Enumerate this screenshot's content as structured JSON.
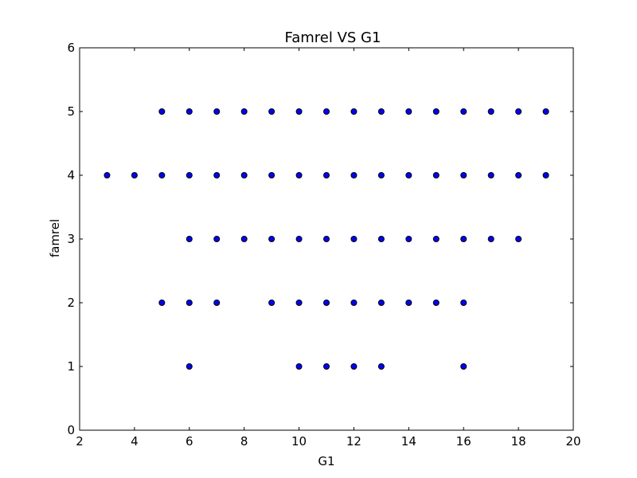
{
  "chart_data": {
    "type": "scatter",
    "title": "Famrel VS G1",
    "xlabel": "G1",
    "ylabel": "famrel",
    "xlim": [
      2,
      20
    ],
    "ylim": [
      0,
      6
    ],
    "xticks": [
      "2",
      "4",
      "6",
      "8",
      "10",
      "12",
      "14",
      "16",
      "18",
      "20"
    ],
    "yticks": [
      "0",
      "1",
      "2",
      "3",
      "4",
      "5",
      "6"
    ],
    "grid": false,
    "marker_color": "#0000ff",
    "marker_edge_color": "#000000",
    "series": [
      {
        "points": [
          [
            5,
            5
          ],
          [
            6,
            5
          ],
          [
            7,
            5
          ],
          [
            8,
            5
          ],
          [
            9,
            5
          ],
          [
            10,
            5
          ],
          [
            11,
            5
          ],
          [
            12,
            5
          ],
          [
            13,
            5
          ],
          [
            14,
            5
          ],
          [
            15,
            5
          ],
          [
            16,
            5
          ],
          [
            17,
            5
          ],
          [
            18,
            5
          ],
          [
            19,
            5
          ],
          [
            3,
            4
          ],
          [
            4,
            4
          ],
          [
            5,
            4
          ],
          [
            6,
            4
          ],
          [
            7,
            4
          ],
          [
            8,
            4
          ],
          [
            9,
            4
          ],
          [
            10,
            4
          ],
          [
            11,
            4
          ],
          [
            12,
            4
          ],
          [
            13,
            4
          ],
          [
            14,
            4
          ],
          [
            15,
            4
          ],
          [
            16,
            4
          ],
          [
            17,
            4
          ],
          [
            18,
            4
          ],
          [
            19,
            4
          ],
          [
            6,
            3
          ],
          [
            7,
            3
          ],
          [
            8,
            3
          ],
          [
            9,
            3
          ],
          [
            10,
            3
          ],
          [
            11,
            3
          ],
          [
            12,
            3
          ],
          [
            13,
            3
          ],
          [
            14,
            3
          ],
          [
            15,
            3
          ],
          [
            16,
            3
          ],
          [
            17,
            3
          ],
          [
            18,
            3
          ],
          [
            5,
            2
          ],
          [
            6,
            2
          ],
          [
            7,
            2
          ],
          [
            9,
            2
          ],
          [
            10,
            2
          ],
          [
            11,
            2
          ],
          [
            12,
            2
          ],
          [
            13,
            2
          ],
          [
            14,
            2
          ],
          [
            15,
            2
          ],
          [
            16,
            2
          ],
          [
            6,
            1
          ],
          [
            10,
            1
          ],
          [
            11,
            1
          ],
          [
            12,
            1
          ],
          [
            13,
            1
          ],
          [
            16,
            1
          ]
        ]
      }
    ]
  }
}
